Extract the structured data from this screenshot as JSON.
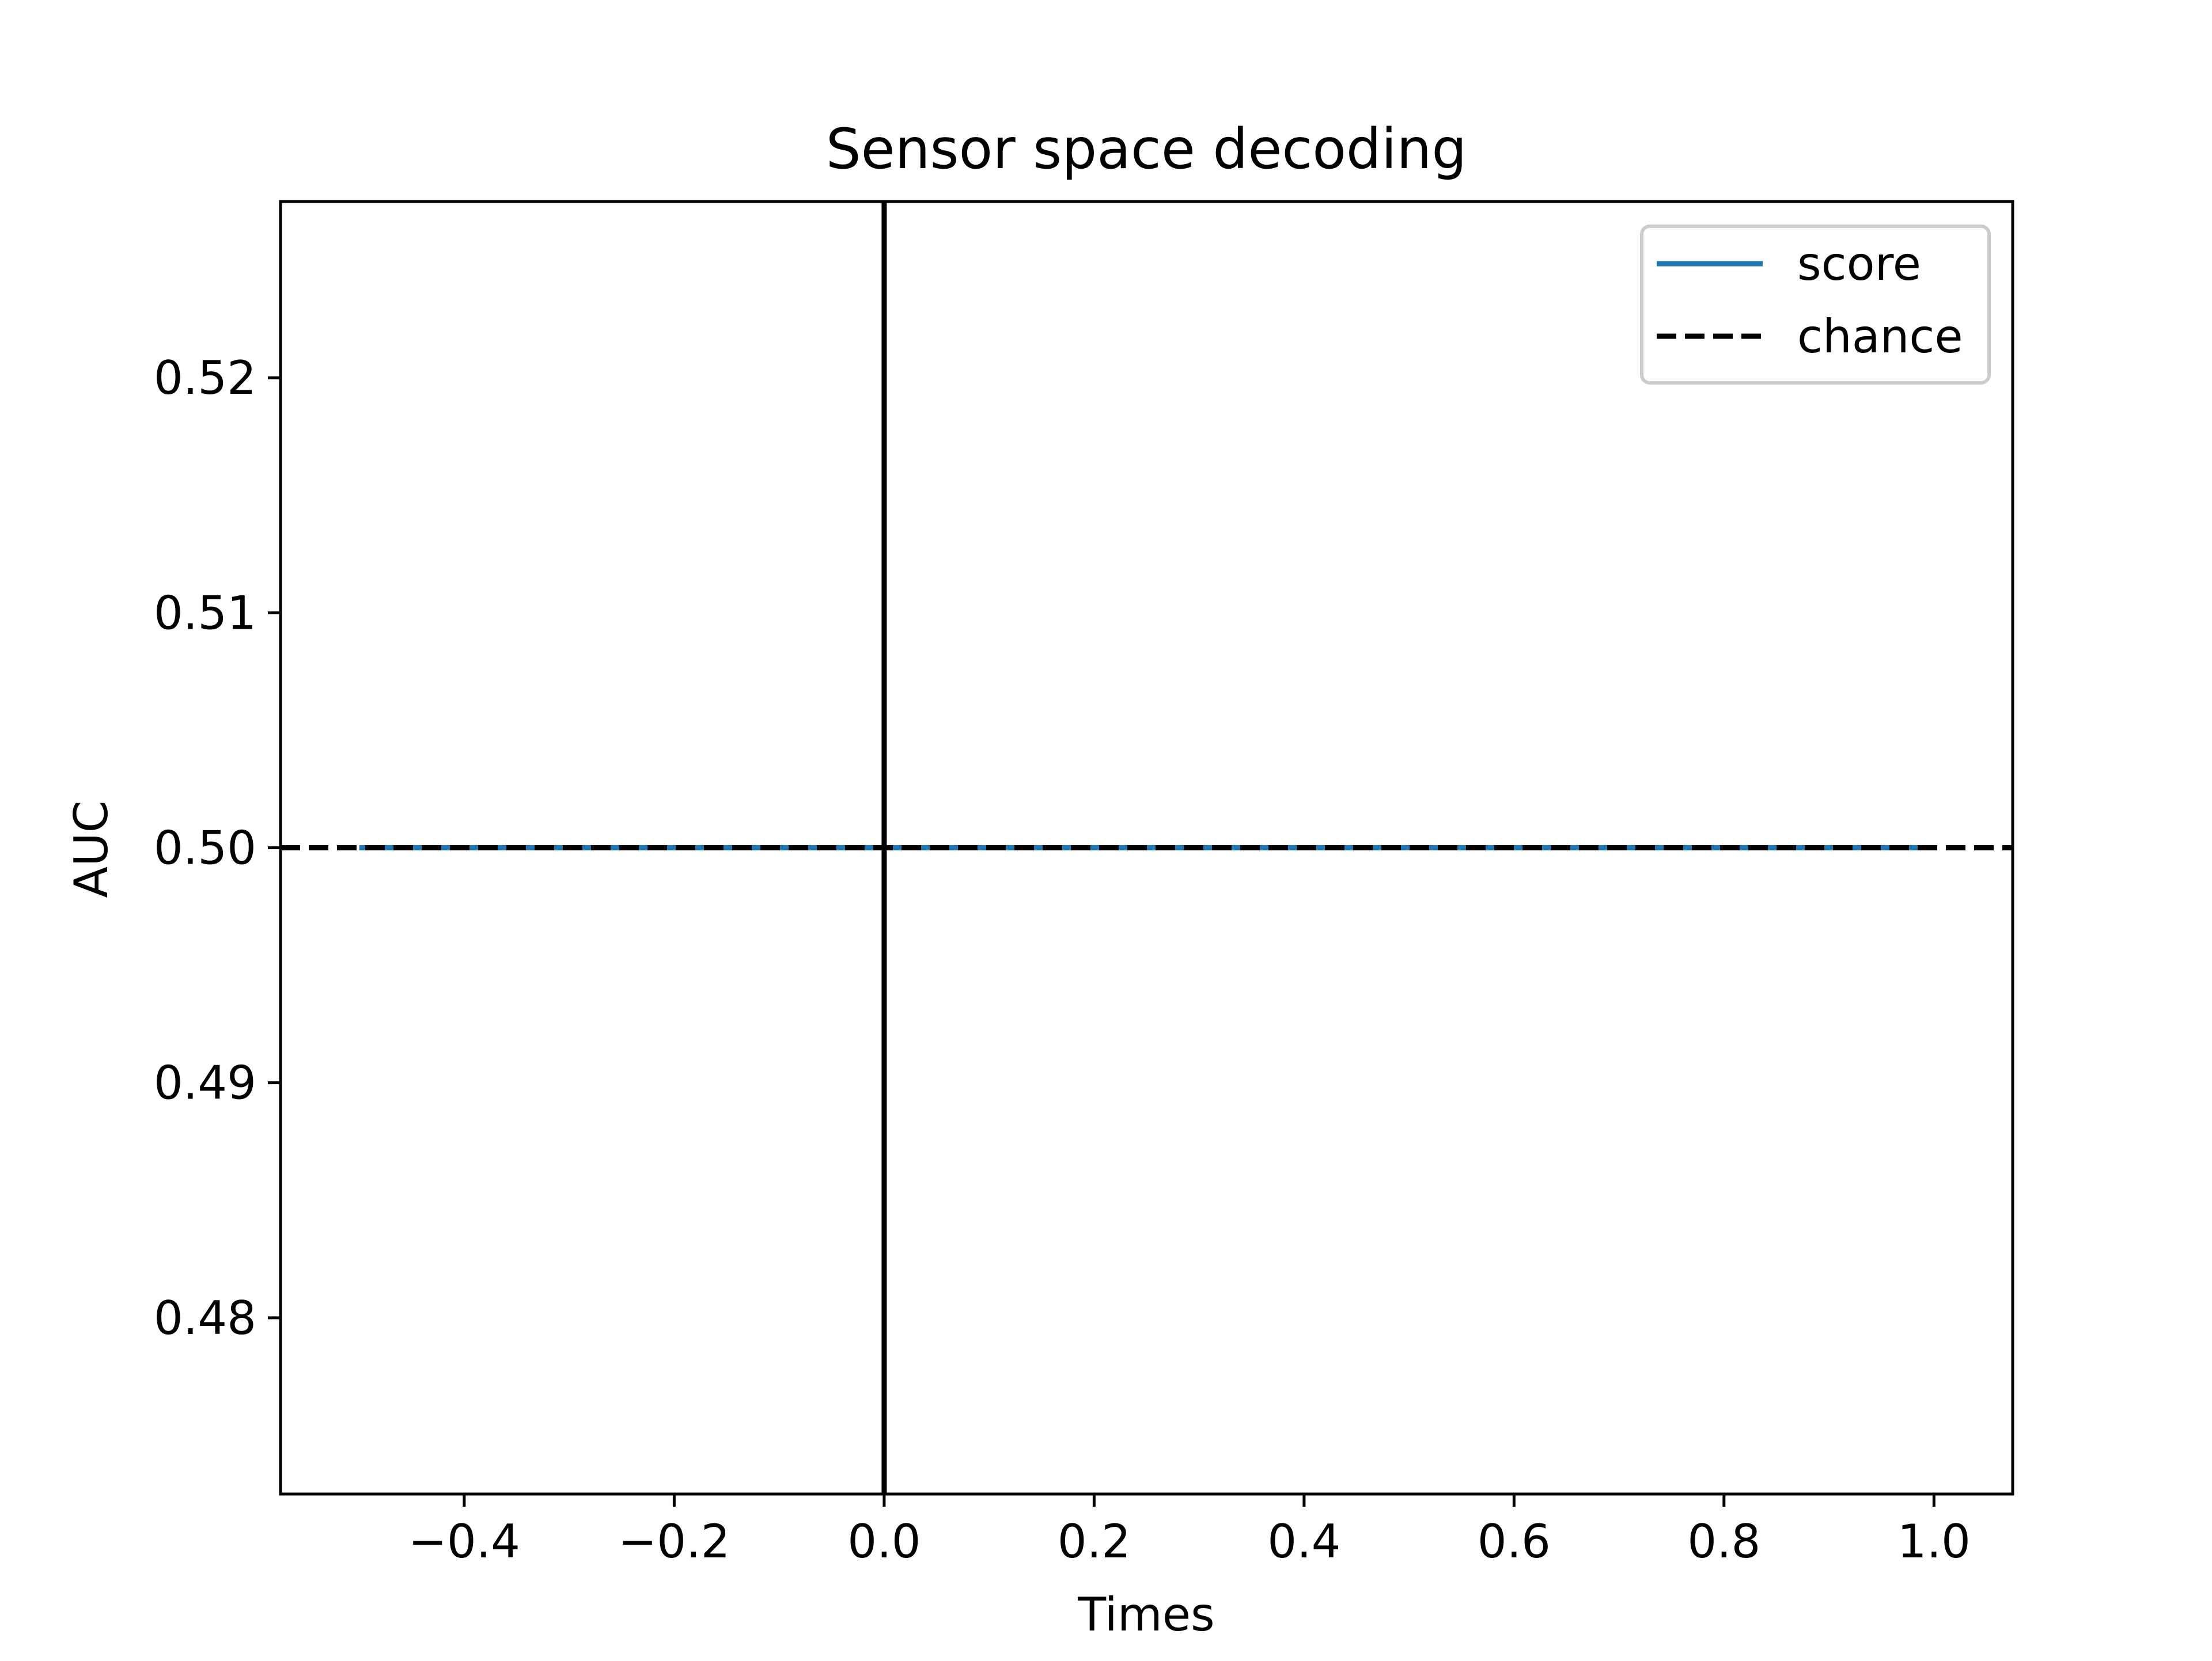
{
  "chart_data": {
    "type": "line",
    "title": "Sensor space decoding",
    "xlabel": "Times",
    "ylabel": "AUC",
    "xlim": [
      -0.575,
      1.075
    ],
    "ylim": [
      0.4725,
      0.5275
    ],
    "xticks": [
      -0.4,
      -0.2,
      0.0,
      0.2,
      0.4,
      0.6,
      0.8,
      1.0
    ],
    "xtick_labels": [
      "−0.4",
      "−0.2",
      "0.0",
      "0.2",
      "0.4",
      "0.6",
      "0.8",
      "1.0"
    ],
    "yticks": [
      0.48,
      0.49,
      0.5,
      0.51,
      0.52
    ],
    "ytick_labels": [
      "0.48",
      "0.49",
      "0.50",
      "0.51",
      "0.52"
    ],
    "grid": false,
    "legend_position": "top-right",
    "series": [
      {
        "name": "score",
        "color": "#1f77b4",
        "style": "solid",
        "x": [
          -0.5,
          -0.4,
          -0.3,
          -0.2,
          -0.1,
          0.0,
          0.1,
          0.2,
          0.3,
          0.4,
          0.5,
          0.6,
          0.7,
          0.8,
          0.9,
          1.0
        ],
        "y": [
          0.5,
          0.5,
          0.5,
          0.5,
          0.5,
          0.5,
          0.5,
          0.5,
          0.5,
          0.5,
          0.5,
          0.5,
          0.5,
          0.5,
          0.5,
          0.5
        ]
      },
      {
        "name": "chance",
        "color": "#000000",
        "style": "dashed",
        "y": 0.5
      }
    ],
    "annotations": [
      {
        "type": "vline",
        "x": 0.0,
        "color": "#000000"
      }
    ]
  }
}
